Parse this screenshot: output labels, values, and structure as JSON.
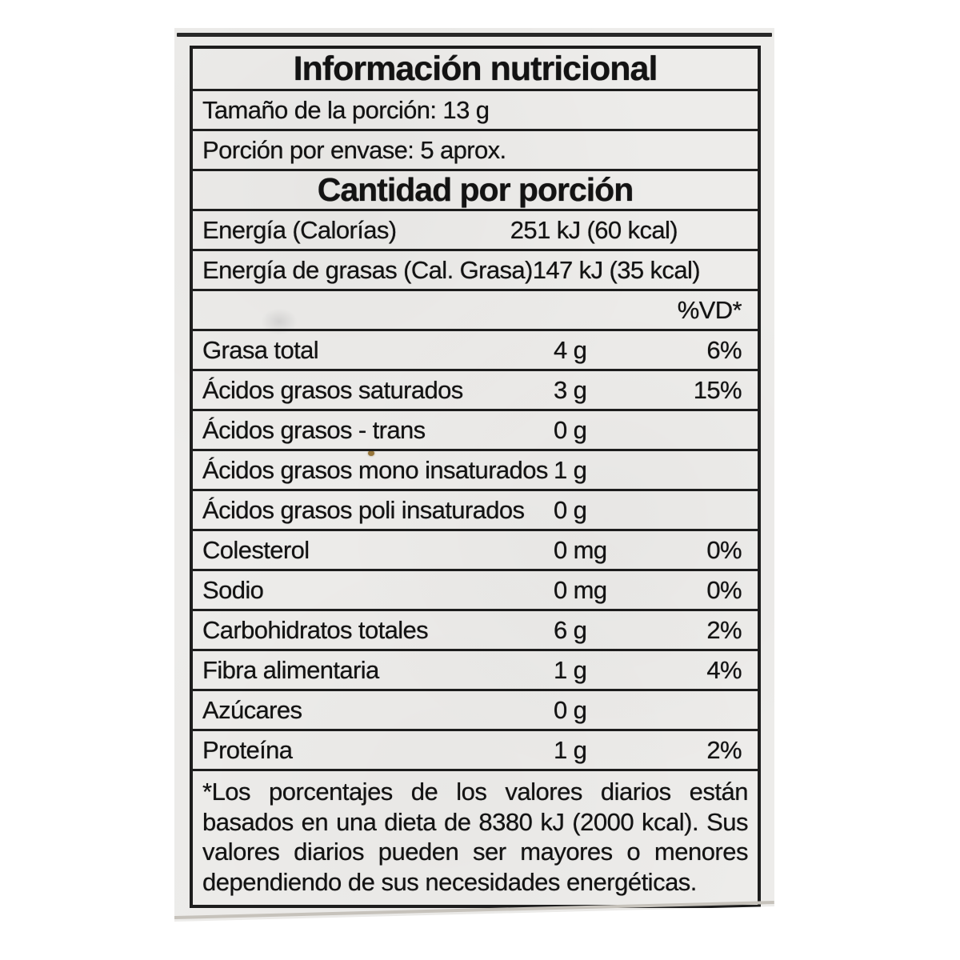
{
  "label": {
    "paper_color": "#edecea",
    "line_color": "#1d1d1d",
    "text_color": "#131313",
    "title": "Información nutricional",
    "serving_size": "Tamaño de la porción: 13 g",
    "servings_per_pack": "Porción por envase: 5 aprox.",
    "section_header": "Cantidad por porción",
    "dv_header": "%VD*",
    "rows": [
      {
        "label": "Energía (Calorías)",
        "value": "251 kJ (60 kcal)",
        "dv": ""
      },
      {
        "label": "Energía de grasas (Cal. Grasa)",
        "value": "147 kJ (35 kcal)",
        "dv": ""
      },
      {
        "label": "Grasa total",
        "value": "4 g",
        "dv": "6%"
      },
      {
        "label": "Ácidos grasos saturados",
        "value": "3 g",
        "dv": "15%"
      },
      {
        "label": "Ácidos grasos - trans",
        "value": "0 g",
        "dv": ""
      },
      {
        "label": "Ácidos grasos mono insaturados",
        "value": "1 g",
        "dv": ""
      },
      {
        "label": "Ácidos grasos poli insaturados",
        "value": "0 g",
        "dv": ""
      },
      {
        "label": "Colesterol",
        "value": "0 mg",
        "dv": "0%"
      },
      {
        "label": "Sodio",
        "value": "0 mg",
        "dv": "0%"
      },
      {
        "label": "Carbohidratos totales",
        "value": "6 g",
        "dv": "2%"
      },
      {
        "label": "Fibra alimentaria",
        "value": "1 g",
        "dv": "4%"
      },
      {
        "label": "Azúcares",
        "value": "0 g",
        "dv": ""
      },
      {
        "label": "Proteína",
        "value": "1 g",
        "dv": "2%"
      }
    ],
    "footnote": "*Los porcentajes de los valores diarios están basados en una dieta de 8380 kJ (2000 kcal). Sus valores diarios pueden ser mayores o menores dependiendo de sus necesidades energéticas."
  }
}
